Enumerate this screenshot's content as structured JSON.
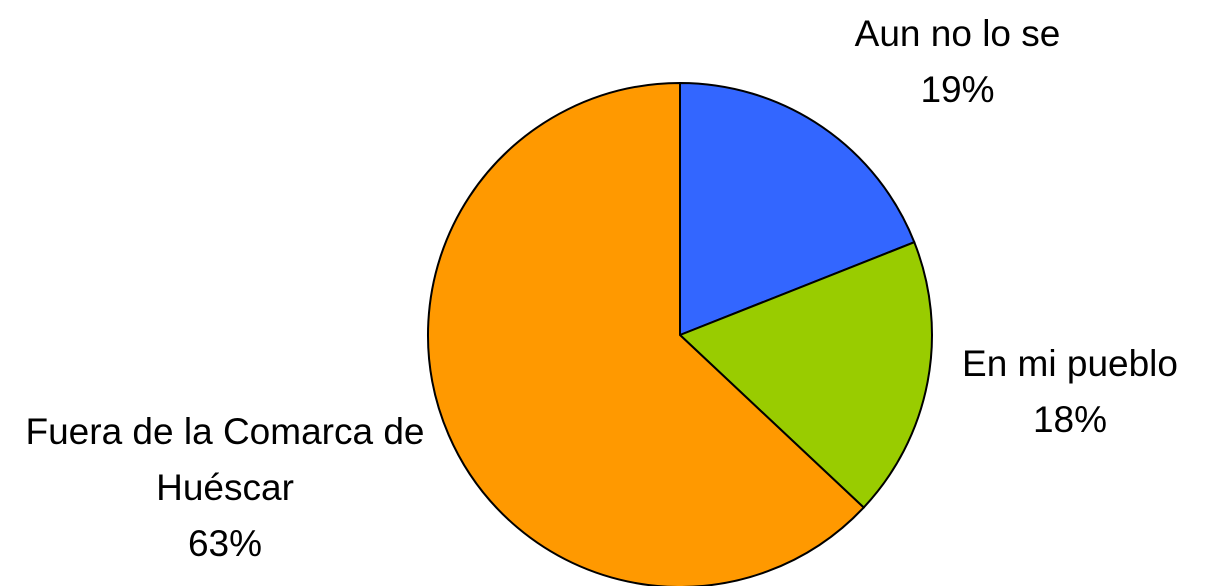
{
  "chart_data": {
    "type": "pie",
    "categories": [
      "Aun no lo se",
      "En mi pueblo",
      "Fuera de la Comarca de Huéscar"
    ],
    "values": [
      19,
      18,
      63
    ],
    "value_labels": [
      "19%",
      "18%",
      "63%"
    ],
    "colors": [
      "#3366ff",
      "#99cc00",
      "#ff9900"
    ]
  }
}
